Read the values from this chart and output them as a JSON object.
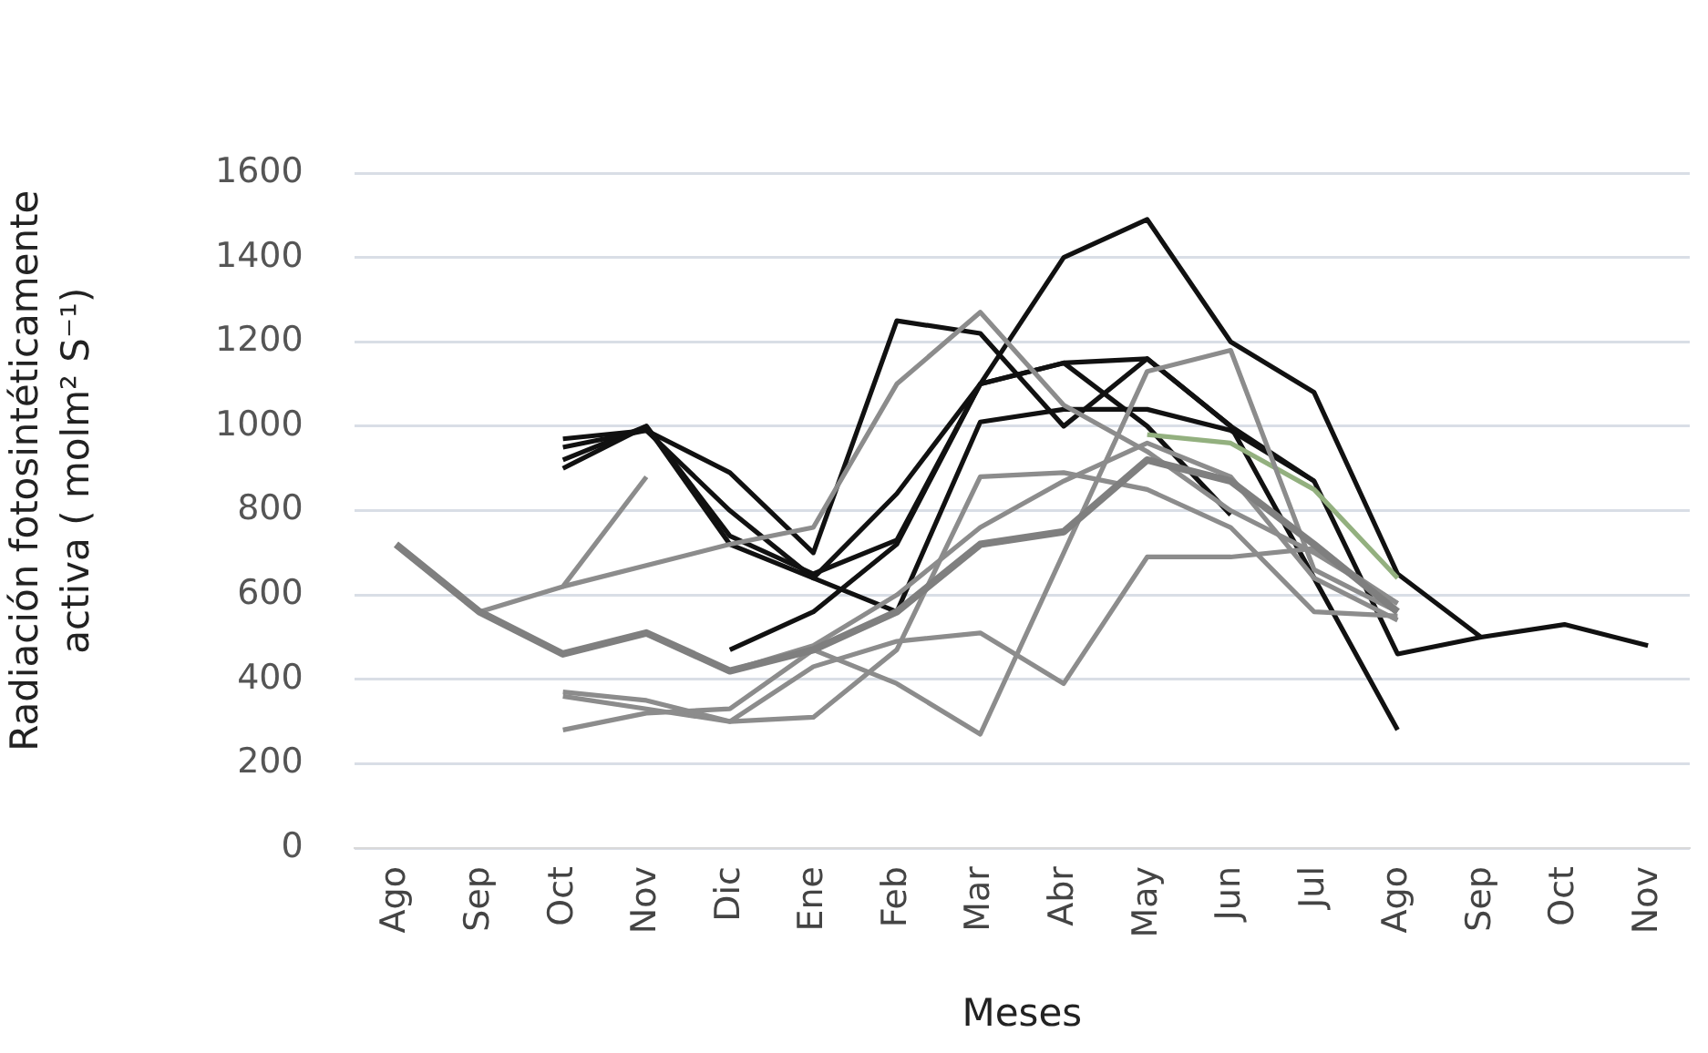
{
  "chart_data": {
    "type": "line",
    "xlabel": "Meses",
    "ylabel": "Radiación fotosintéticamente activa ( molm² S⁻¹)",
    "categories": [
      "Ago",
      "Sep",
      "Oct",
      "Nov",
      "Dic",
      "Ene",
      "Feb",
      "Mar",
      "Abr",
      "May",
      "Jun",
      "Jul",
      "Ago",
      "Sep",
      "Oct",
      "Nov"
    ],
    "ylim": [
      0,
      1600
    ],
    "yticks": [
      0,
      200,
      400,
      600,
      800,
      1000,
      1200,
      1400,
      1600
    ],
    "grid": "y",
    "legend": false,
    "marker": "none",
    "line_style": "solid",
    "series": [
      {
        "color": "#7f7f7f",
        "values": [
          720,
          560,
          460,
          510,
          420,
          470,
          560,
          720,
          750,
          920,
          870,
          720,
          560,
          null,
          null,
          null
        ]
      },
      {
        "color": "#8c8c8c",
        "values": [
          null,
          560,
          620,
          880,
          null,
          null,
          null,
          null,
          null,
          null,
          null,
          null,
          null,
          null,
          null,
          null
        ]
      },
      {
        "color": "#8c8c8c",
        "values": [
          null,
          null,
          620,
          null,
          720,
          760,
          1100,
          1270,
          1050,
          940,
          800,
          700,
          580,
          null,
          null,
          null
        ]
      },
      {
        "color": "#8c8c8c",
        "values": [
          null,
          null,
          370,
          350,
          300,
          310,
          470,
          880,
          890,
          850,
          760,
          560,
          550,
          null,
          null,
          null
        ]
      },
      {
        "color": "#8c8c8c",
        "values": [
          null,
          null,
          280,
          320,
          330,
          470,
          390,
          270,
          700,
          1130,
          1180,
          660,
          560,
          null,
          null,
          null
        ]
      },
      {
        "color": "#8c8c8c",
        "values": [
          null,
          null,
          360,
          330,
          300,
          430,
          490,
          510,
          390,
          690,
          690,
          710,
          580,
          null,
          null,
          null
        ]
      },
      {
        "color": "#8c8c8c",
        "values": [
          null,
          null,
          null,
          null,
          420,
          480,
          600,
          760,
          870,
          960,
          880,
          640,
          540,
          null,
          null,
          null
        ]
      },
      {
        "color": "#93b07f",
        "values": [
          null,
          null,
          null,
          null,
          null,
          null,
          null,
          null,
          null,
          980,
          960,
          850,
          640,
          null,
          null,
          null
        ]
      },
      {
        "color": "#111111",
        "values": [
          null,
          null,
          900,
          1000,
          720,
          640,
          840,
          1100,
          1150,
          1160,
          1000,
          870,
          460,
          500,
          530,
          480
        ]
      },
      {
        "color": "#111111",
        "values": [
          null,
          null,
          950,
          990,
          800,
          640,
          560,
          1010,
          1040,
          1040,
          990,
          870,
          null,
          null,
          null,
          null
        ]
      },
      {
        "color": "#111111",
        "values": [
          null,
          null,
          920,
          1000,
          740,
          650,
          730,
          1100,
          1400,
          1490,
          1200,
          1080,
          650,
          500,
          null,
          null
        ]
      },
      {
        "color": "#111111",
        "values": [
          null,
          null,
          970,
          990,
          890,
          700,
          1250,
          1220,
          1000,
          1160,
          1000,
          640,
          280,
          null,
          null,
          null
        ]
      },
      {
        "color": "#111111",
        "values": [
          null,
          null,
          null,
          null,
          470,
          560,
          720,
          1100,
          1150,
          1000,
          790,
          null,
          null,
          null,
          null,
          null
        ]
      }
    ]
  }
}
